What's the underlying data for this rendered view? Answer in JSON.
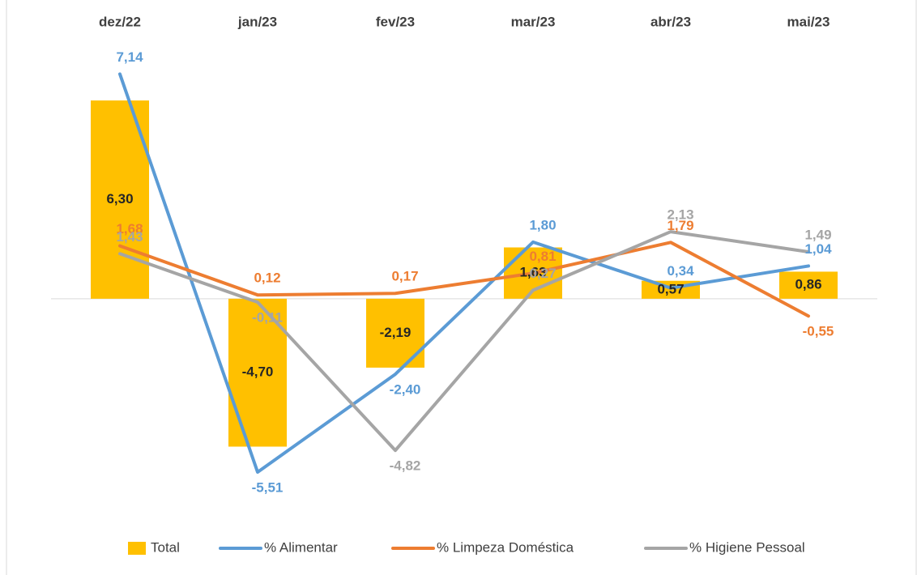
{
  "chart_data": {
    "type": "bar-line",
    "categories": [
      "dez/22",
      "jan/23",
      "fev/23",
      "mar/23",
      "abr/23",
      "mai/23"
    ],
    "ylim": [
      -6,
      8
    ],
    "series": [
      {
        "name": "Total",
        "type": "bar",
        "color": "#FFC000",
        "values": [
          6.3,
          -4.7,
          -2.19,
          1.63,
          0.57,
          0.86
        ],
        "value_labels": [
          "6,30",
          "-4,70",
          "-2,19",
          "1,63",
          "0,57",
          "0,86"
        ]
      },
      {
        "name": "% Alimentar",
        "type": "line",
        "color": "#5B9BD5",
        "values": [
          7.14,
          -5.51,
          -2.4,
          1.8,
          0.34,
          1.04
        ],
        "value_labels": [
          "7,14",
          "-5,51",
          "-2,40",
          "1,80",
          "0,34",
          "1,04"
        ]
      },
      {
        "name": "% Limpeza Doméstica",
        "type": "line",
        "color": "#ED7D31",
        "values": [
          1.68,
          0.12,
          0.17,
          0.81,
          1.79,
          -0.55
        ],
        "value_labels": [
          "1,68",
          "0,12",
          "0,17",
          "0,81",
          "1,79",
          "-0,55"
        ]
      },
      {
        "name": "% Higiene Pessoal",
        "type": "line",
        "color": "#A5A5A5",
        "values": [
          1.43,
          -0.11,
          -4.82,
          0.27,
          2.13,
          1.49
        ],
        "value_labels": [
          "1,43",
          "-0,11",
          "-4,82",
          "0,27",
          "2,13",
          "1,49"
        ]
      }
    ]
  }
}
